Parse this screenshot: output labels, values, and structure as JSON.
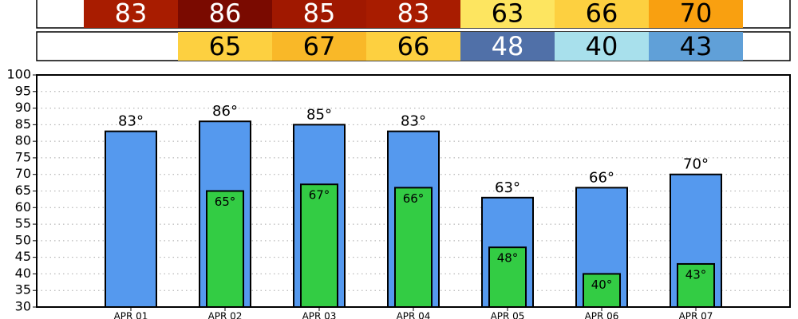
{
  "chart_data": {
    "type": "bar",
    "categories": [
      "APR 01",
      "APR 02",
      "APR 03",
      "APR 04",
      "APR 05",
      "APR 06",
      "APR 07"
    ],
    "series": [
      {
        "color": "#5599ee",
        "values": [
          83,
          86,
          85,
          83,
          63,
          66,
          70
        ],
        "value_labels": [
          "83°",
          "86°",
          "85°",
          "83°",
          "63°",
          "66°",
          "70°"
        ],
        "cell_colors": [
          "#a81c00",
          "#7a0a00",
          "#a01800",
          "#a81c00",
          "#fde560",
          "#fdd040",
          "#f9a010"
        ],
        "cell_text_colors": [
          "#ffffff",
          "#ffffff",
          "#ffffff",
          "#ffffff",
          "#000000",
          "#000000",
          "#000000"
        ]
      },
      {
        "color": "#33cc44",
        "values": [
          null,
          65,
          67,
          66,
          48,
          40,
          43
        ],
        "value_labels": [
          null,
          "65°",
          "67°",
          "66°",
          "48°",
          "40°",
          "43°"
        ],
        "cell_colors": [
          null,
          "#fdd040",
          "#f9b828",
          "#fdd040",
          "#5070a8",
          "#a8e0ec",
          "#60a0d8"
        ],
        "cell_text_colors": [
          null,
          "#000000",
          "#000000",
          "#000000",
          "#ffffff",
          "#000000",
          "#000000"
        ]
      }
    ],
    "ylim": [
      30,
      100
    ],
    "yticks": [
      30,
      35,
      40,
      45,
      50,
      55,
      60,
      65,
      70,
      75,
      80,
      85,
      90,
      95,
      100
    ],
    "grid": true
  }
}
